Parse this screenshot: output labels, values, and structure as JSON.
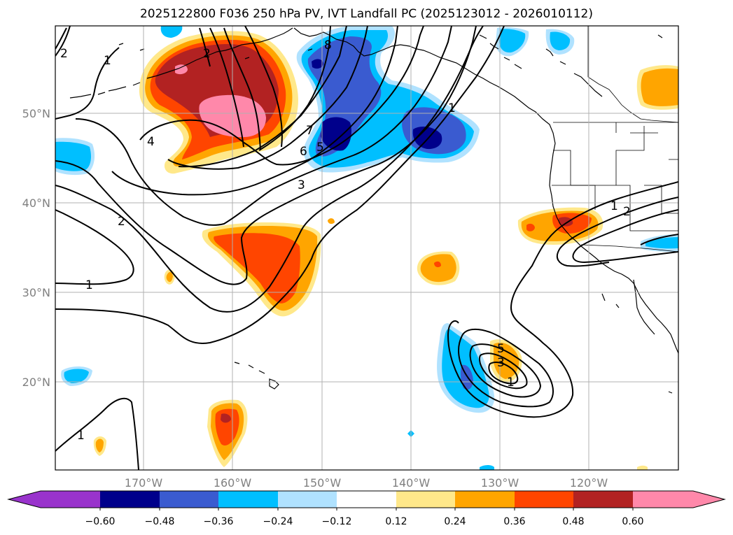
{
  "title": "2025122800 F036 250 hPa PV, IVT Landfall PC (2025123012 - 2026010112)",
  "lat_labels": [
    "50°N",
    "40°N",
    "30°N",
    "20°N"
  ],
  "lon_labels": [
    "170°W",
    "160°W",
    "150°W",
    "140°W",
    "130°W",
    "120°W"
  ],
  "colorbar": {
    "ticks": [
      "−0.60",
      "−0.48",
      "−0.36",
      "−0.24",
      "−0.12",
      "0.12",
      "0.24",
      "0.36",
      "0.48",
      "0.60"
    ],
    "colors": [
      "#9933cc",
      "#00008b",
      "#3a5bd0",
      "#00bfff",
      "#b0e2ff",
      "#ffffff",
      "#ffe88a",
      "#ffa500",
      "#ff4500",
      "#b22222",
      "#ff88aa"
    ]
  },
  "contour_labels": [
    "1",
    "2",
    "2",
    "4",
    "2",
    "1",
    "8",
    "7",
    "6",
    "5",
    "3",
    "1",
    "1",
    "1",
    "2",
    "5",
    "3",
    "1"
  ],
  "colors": {
    "pink": "#ff88aa",
    "darkred": "#b22222",
    "red": "#ff4500",
    "orange": "#ffa500",
    "yellow": "#ffe88a",
    "lightblue": "#b0e2ff",
    "cyan": "#00bfff",
    "blue": "#3a5bd0",
    "navy": "#00008b"
  }
}
